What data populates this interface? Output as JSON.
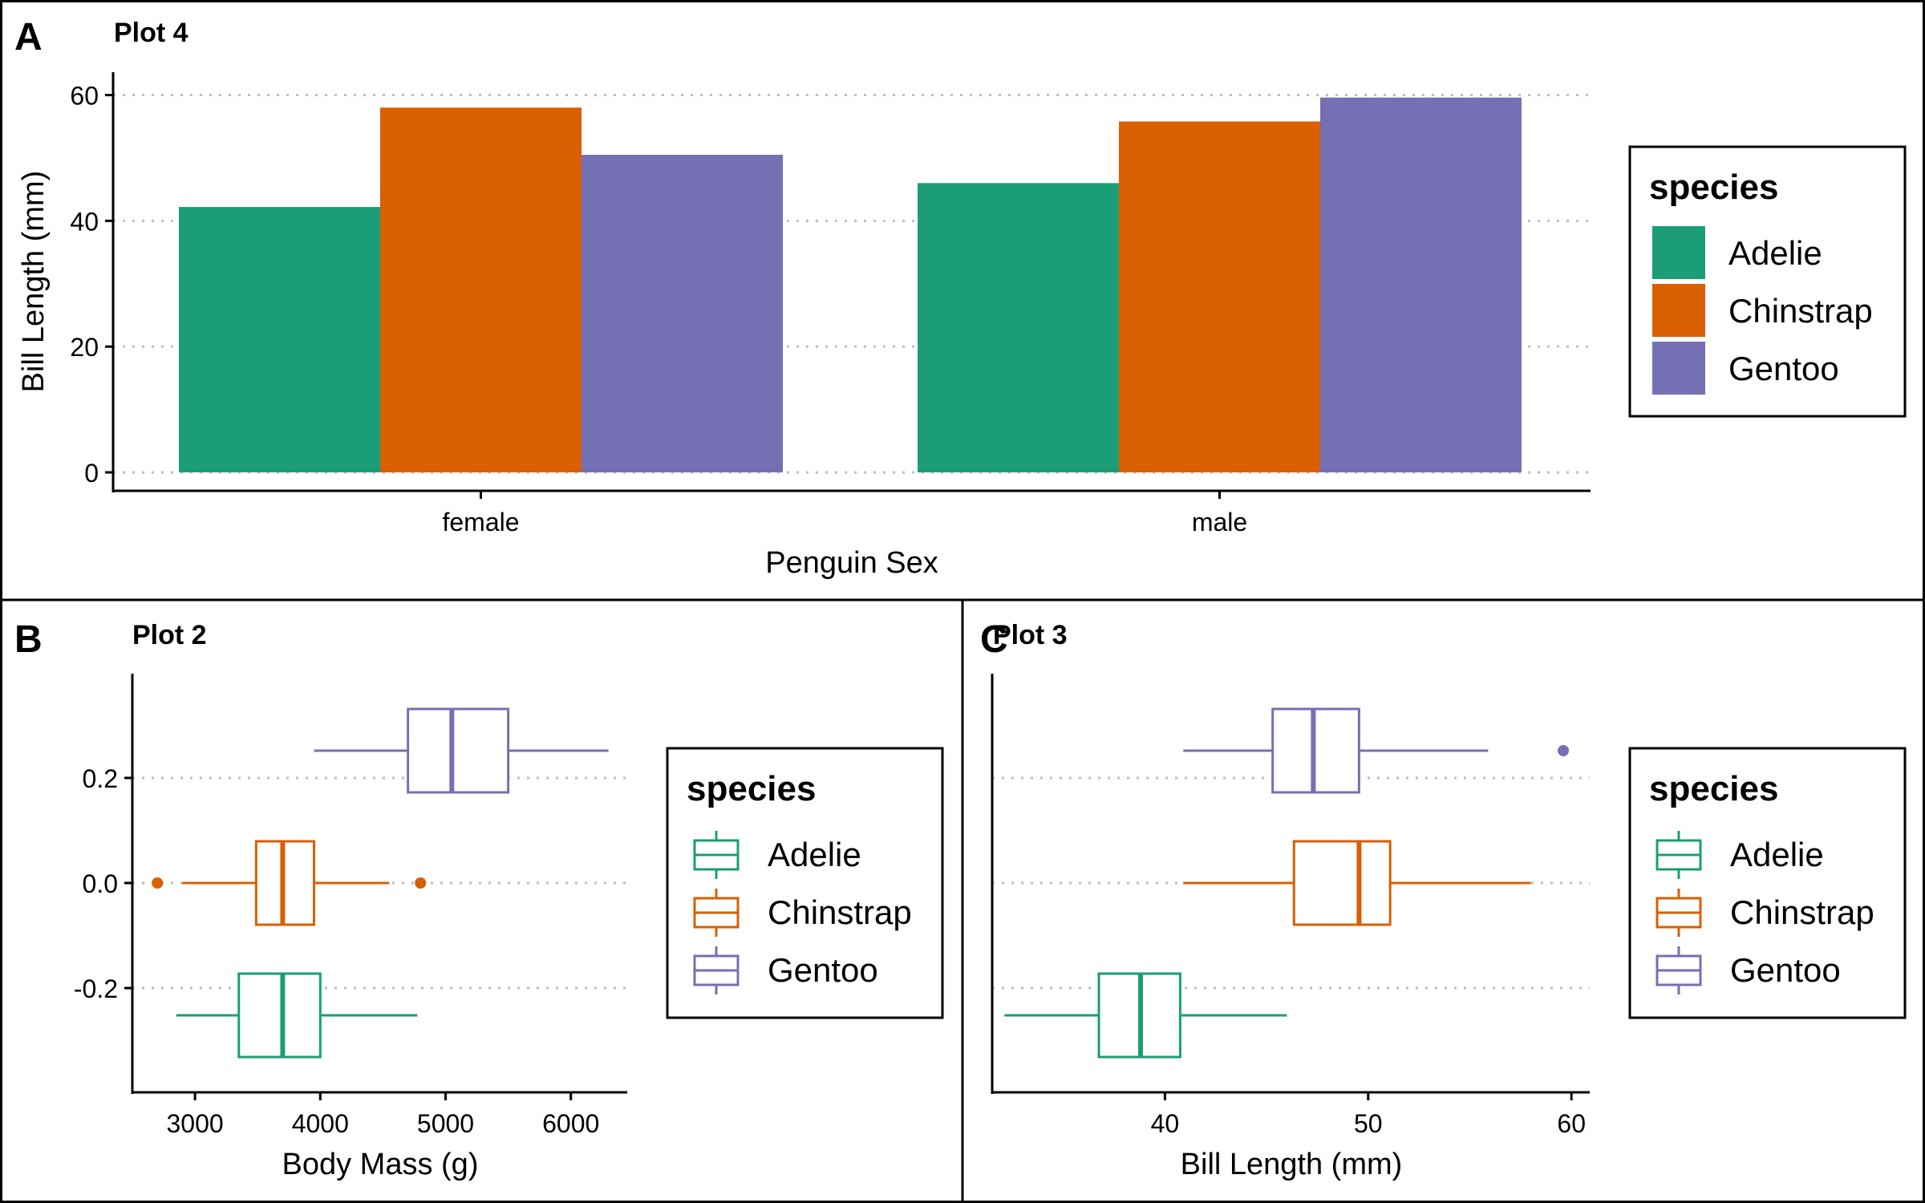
{
  "colors": {
    "adelie": "#1B9E77",
    "chinstrap": "#D95F02",
    "gentoo": "#7570B3",
    "grid": "#BEBEBE",
    "ink": "#000000"
  },
  "chart_data": [
    {
      "panel_tag": "A",
      "type": "bar",
      "title": "Plot 4",
      "xlabel": "Penguin Sex",
      "ylabel": "Bill Length (mm)",
      "categories": [
        "female",
        "male"
      ],
      "series": [
        {
          "name": "Adelie",
          "values": [
            42.2,
            46.0
          ]
        },
        {
          "name": "Chinstrap",
          "values": [
            58.0,
            55.8
          ]
        },
        {
          "name": "Gentoo",
          "values": [
            50.5,
            59.6
          ]
        }
      ],
      "ylim": [
        0,
        63
      ],
      "yticks": [
        0,
        20,
        40,
        60
      ],
      "grid": "horizontal-dotted",
      "legend": {
        "title": "species",
        "placement": "right",
        "items": [
          "Adelie",
          "Chinstrap",
          "Gentoo"
        ]
      }
    },
    {
      "panel_tag": "B",
      "type": "boxplot",
      "title": "Plot 2",
      "xlabel": "Body Mass (g)",
      "ylabel": "",
      "xlim": [
        2500,
        6450
      ],
      "xticks": [
        3000,
        4000,
        5000,
        6000
      ],
      "ylim": [
        -0.4,
        0.4
      ],
      "yticks": [
        "0.2",
        "0.0",
        "-0.2"
      ],
      "boxes": [
        {
          "name": "Adelie",
          "min": 2850,
          "q1": 3350,
          "median": 3700,
          "q3": 4000,
          "max": 4775,
          "outliers": []
        },
        {
          "name": "Chinstrap",
          "min": 2900,
          "q1": 3488,
          "median": 3700,
          "q3": 3950,
          "max": 4550,
          "outliers": [
            2700,
            4800
          ]
        },
        {
          "name": "Gentoo",
          "min": 3950,
          "q1": 4700,
          "median": 5050,
          "q3": 5500,
          "max": 6300,
          "outliers": []
        }
      ],
      "grid": "horizontal-dotted",
      "legend": {
        "title": "species",
        "placement": "right",
        "items": [
          "Adelie",
          "Chinstrap",
          "Gentoo"
        ]
      }
    },
    {
      "panel_tag": "C",
      "type": "boxplot",
      "title": "Plot 3",
      "xlabel": "Bill Length (mm)",
      "ylabel": "",
      "xlim": [
        31.5,
        60.9
      ],
      "xticks": [
        40,
        50,
        60
      ],
      "ylim": [
        -0.4,
        0.4
      ],
      "yticks": [],
      "boxes": [
        {
          "name": "Adelie",
          "min": 32.1,
          "q1": 36.75,
          "median": 38.8,
          "q3": 40.75,
          "max": 46.0,
          "outliers": []
        },
        {
          "name": "Chinstrap",
          "min": 40.9,
          "q1": 46.35,
          "median": 49.55,
          "q3": 51.08,
          "max": 58.0,
          "outliers": []
        },
        {
          "name": "Gentoo",
          "min": 40.9,
          "q1": 45.3,
          "median": 47.3,
          "q3": 49.55,
          "max": 55.9,
          "outliers": [
            59.6
          ]
        }
      ],
      "grid": "horizontal-dotted",
      "legend": {
        "title": "species",
        "placement": "right",
        "items": [
          "Adelie",
          "Chinstrap",
          "Gentoo"
        ]
      }
    }
  ]
}
